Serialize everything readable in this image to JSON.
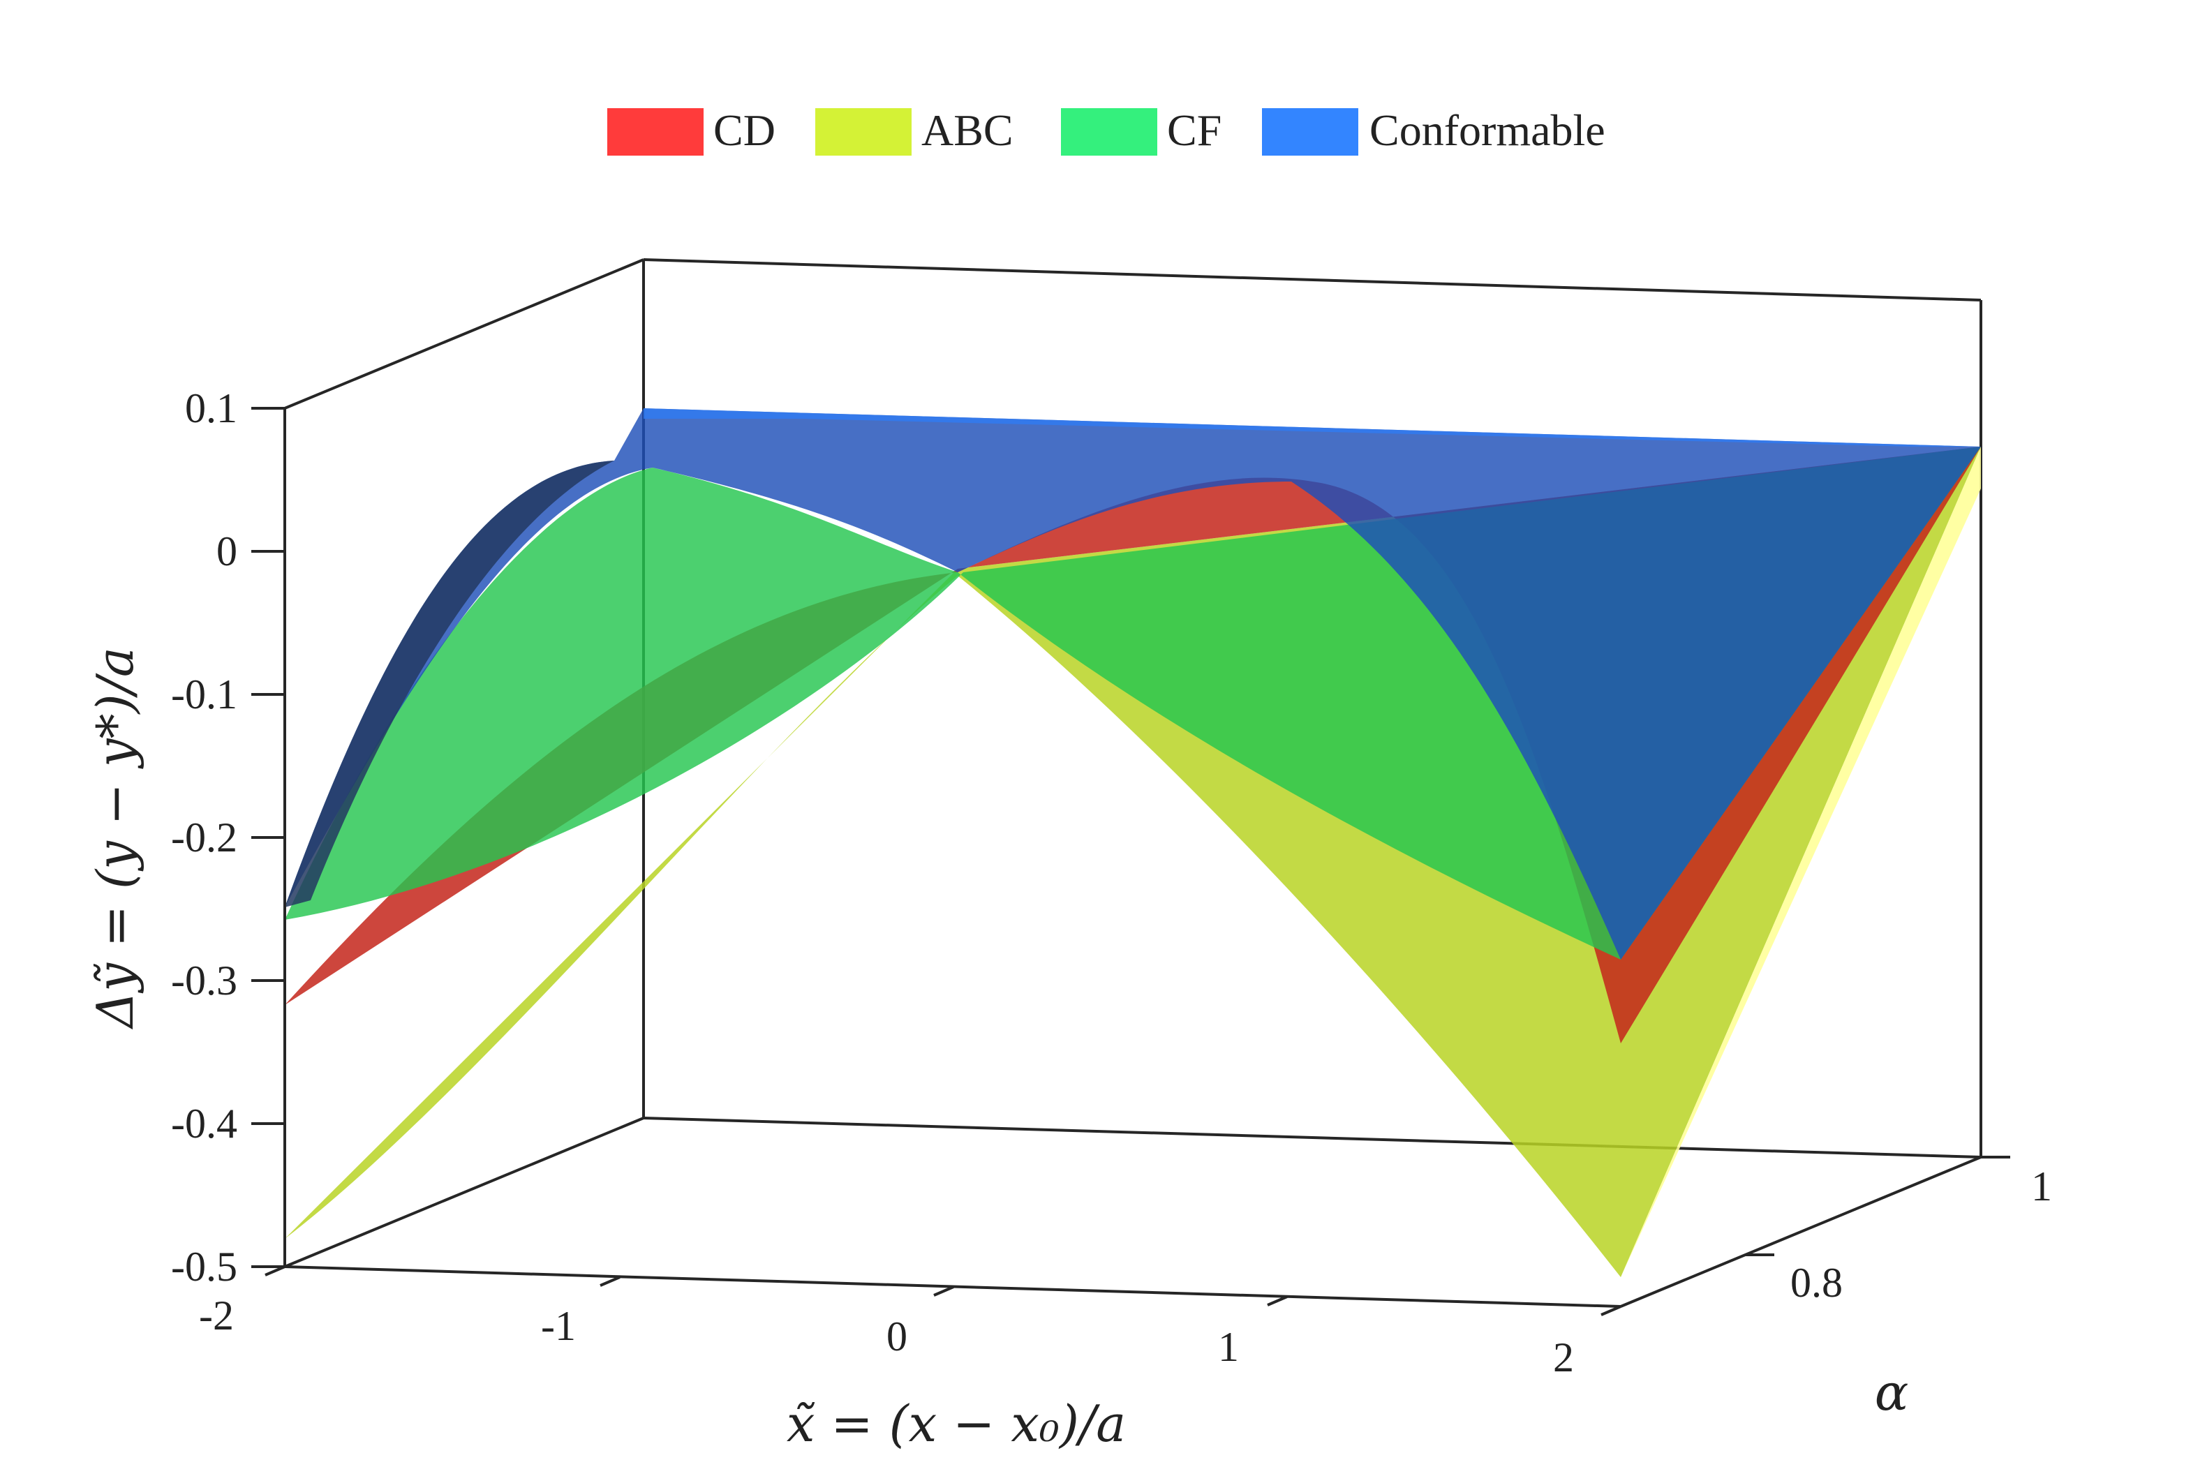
{
  "chart_data": {
    "type": "surface",
    "legend": {
      "placement": "top",
      "entries": [
        {
          "label": "CD",
          "color": "#ff3b3b"
        },
        {
          "label": "ABC",
          "color": "#d4f236"
        },
        {
          "label": "CF",
          "color": "#34f07d"
        },
        {
          "label": "Conformable",
          "color": "#3385ff"
        }
      ]
    },
    "xlabel": "x̃ = (x − x₀)/a",
    "ylabel": "α",
    "zlabel": "Δỹ = (y − y*)/a",
    "x_ticks": [
      "-2",
      "-1",
      "0",
      "1",
      "2"
    ],
    "y_ticks": [
      "0.8",
      "1"
    ],
    "z_ticks": [
      "0.1",
      "0",
      "-0.1",
      "-0.2",
      "-0.3",
      "-0.4",
      "-0.5"
    ],
    "xlim": [
      -2,
      2
    ],
    "ylim": [
      0.62,
      1
    ],
    "zlim": [
      -0.5,
      0.1
    ],
    "series": [
      {
        "name": "CD",
        "color": "#ff3b3b",
        "front_alpha_x": [
          -2,
          -1.5,
          -1,
          -0.5,
          0,
          0.5,
          1,
          1.5,
          2
        ],
        "front_alpha_z": [
          -0.32,
          -0.215,
          -0.13,
          -0.06,
          0.0,
          0.04,
          0.045,
          -0.2,
          -0.35
        ],
        "back_alpha_z_at_edges": 0.07
      },
      {
        "name": "ABC",
        "color": "#d4f236",
        "front_alpha_x": [
          -2,
          -1.5,
          -1,
          -0.5,
          0,
          0.5,
          1,
          1.5,
          2
        ],
        "front_alpha_z": [
          -0.48,
          -0.33,
          -0.18,
          -0.06,
          0.0,
          -0.08,
          -0.22,
          -0.38,
          -0.5
        ],
        "back_alpha_z_at_edges": 0.07
      },
      {
        "name": "CF",
        "color": "#34f07d",
        "front_alpha_x": [
          -2,
          -1.5,
          -1,
          -0.5,
          0,
          0.5,
          1,
          1.5,
          2
        ],
        "front_alpha_z": [
          -0.26,
          -0.15,
          0.06,
          0.02,
          0.0,
          -0.08,
          -0.18,
          -0.24,
          -0.29
        ],
        "back_alpha_z_at_edges": 0.07
      },
      {
        "name": "Conformable",
        "color": "#3385ff",
        "front_alpha_x": [
          -2,
          -1.5,
          -1,
          -0.5,
          0,
          0.5,
          1,
          1.5,
          2
        ],
        "front_alpha_z": [
          -0.25,
          -0.08,
          0.06,
          0.04,
          0.0,
          0.03,
          0.04,
          -0.08,
          -0.29
        ],
        "back_alpha_z_at_edges": 0.1
      }
    ],
    "grid": false
  }
}
